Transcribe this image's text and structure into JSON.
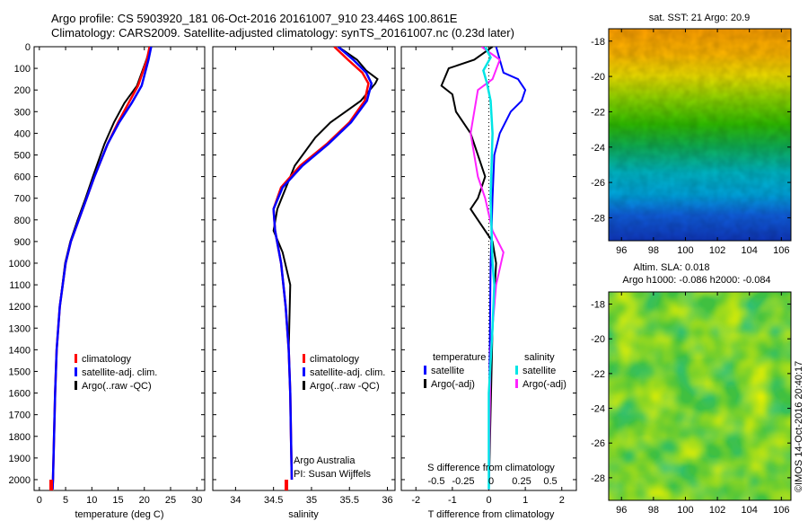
{
  "header": {
    "title_line1": "Argo profile: CS 5903920_181 06-Oct-2016 20161007_910 23.446S 100.861E",
    "title_line2": "Climatology: CARS2009. Satellite-adjusted climatology: synTS_20161007.nc (0.23d later)"
  },
  "colors": {
    "climatology": "#ff0000",
    "satellite": "#0000ff",
    "argo": "#000000",
    "sal_satellite": "#00e5e5",
    "sal_argo": "#ff22ff"
  },
  "panels": {
    "depth_ticks": [
      0,
      100,
      200,
      300,
      400,
      500,
      600,
      700,
      800,
      900,
      1000,
      1100,
      1200,
      1300,
      1400,
      1500,
      1600,
      1700,
      1800,
      1900,
      2000
    ],
    "depth_range": [
      0,
      2050
    ],
    "temperature": {
      "xlabel": "temperature (deg C)",
      "xlim": [
        -1,
        31.5
      ],
      "xticks": [
        "0",
        "5",
        "10",
        "15",
        "20",
        "25",
        "30"
      ],
      "legend": [
        "climatology",
        "satellite-adj. clim.",
        "Argo(..raw -QC)"
      ]
    },
    "salinity": {
      "xlabel": "salinity",
      "xlim": [
        33.7,
        36.1
      ],
      "xticks": [
        "34",
        "34.5",
        "35",
        "35.5",
        "36"
      ],
      "legend": [
        "climatology",
        "satellite-adj. clim.",
        "Argo(..raw -QC)"
      ],
      "note_line1": "Argo Australia",
      "note_line2": "PI: Susan Wijffels"
    },
    "difference": {
      "xlabel": "T difference from climatology",
      "xlim": [
        -2.4,
        2.4
      ],
      "xticks": [
        "-2",
        "-1",
        "0",
        "1",
        "2"
      ],
      "top_axis_label": "S difference from climatology",
      "top_ticks": [
        "-0.5",
        "-0.25",
        "0",
        "0.25",
        "0.5"
      ],
      "legend_temp_title": "temperature",
      "legend_sal_title": "salinity",
      "legend_temp": [
        "satellite",
        "Argo(-adj)"
      ],
      "legend_sal": [
        "satellite",
        "Argo(-adj)"
      ]
    }
  },
  "maps": {
    "sst_title": "sat. SST: 21 Argo: 20.9",
    "sla_title_line1": "Altim. SLA: 0.018",
    "sla_title_line2": "Argo h1000: -0.086 h2000: -0.084",
    "lon_ticks": [
      "96",
      "98",
      "100",
      "102",
      "104",
      "106"
    ],
    "lat_ticks": [
      "-18",
      "-20",
      "-22",
      "-24",
      "-26",
      "-28"
    ],
    "lon_range": [
      95.2,
      106.6
    ],
    "lat_range": [
      -17.3,
      -29.3
    ]
  },
  "footer": {
    "stamp": "©IMOS 14-Oct-2016 20:40:17"
  },
  "chart_data": [
    {
      "type": "line",
      "xlabel": "temperature (deg C)",
      "ylabel": "",
      "xlim": [
        -1,
        31.5
      ],
      "ylim": [
        2050,
        0
      ],
      "series": [
        {
          "name": "climatology",
          "x": [
            21,
            20.5,
            18.8,
            17,
            15,
            13,
            10.5,
            9,
            7.5,
            6,
            5,
            3.9,
            3.3,
            3,
            2.8,
            2.6,
            2.5
          ],
          "y": [
            0,
            60,
            180,
            260,
            350,
            450,
            600,
            700,
            800,
            900,
            1000,
            1200,
            1400,
            1600,
            1800,
            2000,
            2045
          ]
        },
        {
          "name": "satellite-adj. clim.",
          "x": [
            21.3,
            20.8,
            19.5,
            17.6,
            15.2,
            13,
            10.5,
            9,
            7.5,
            6,
            5,
            3.9,
            3.3,
            3,
            2.8,
            2.6,
            2.5
          ],
          "y": [
            0,
            60,
            180,
            260,
            350,
            450,
            600,
            700,
            800,
            900,
            1000,
            1200,
            1400,
            1600,
            1800,
            2000,
            2045
          ]
        },
        {
          "name": "Argo(..raw -QC)",
          "x": [
            21.1,
            20.4,
            18.6,
            16.2,
            14.2,
            12.4,
            10.2,
            8.8,
            7.3,
            5.9,
            4.9,
            3.9,
            3.3,
            3,
            2.8,
            2.6,
            2.5
          ],
          "y": [
            0,
            60,
            180,
            260,
            350,
            450,
            600,
            700,
            800,
            900,
            1000,
            1200,
            1400,
            1600,
            1800,
            2000,
            2045
          ]
        }
      ]
    },
    {
      "type": "line",
      "xlabel": "salinity",
      "ylabel": "",
      "xlim": [
        33.7,
        36.1
      ],
      "ylim": [
        2050,
        0
      ],
      "series": [
        {
          "name": "climatology",
          "x": [
            35.3,
            35.48,
            35.67,
            35.75,
            35.7,
            35.5,
            35.2,
            34.85,
            34.6,
            34.5,
            34.52,
            34.6,
            34.66,
            34.7,
            34.72,
            34.73,
            34.74
          ],
          "y": [
            0,
            60,
            120,
            170,
            250,
            350,
            450,
            550,
            650,
            750,
            850,
            1000,
            1200,
            1400,
            1600,
            1800,
            2000
          ]
        },
        {
          "name": "satellite-adj. clim.",
          "x": [
            35.35,
            35.55,
            35.72,
            35.79,
            35.73,
            35.52,
            35.22,
            34.88,
            34.62,
            34.5,
            34.52,
            34.6,
            34.66,
            34.7,
            34.72,
            34.73,
            34.74
          ],
          "y": [
            0,
            60,
            120,
            170,
            250,
            350,
            450,
            550,
            650,
            750,
            850,
            1000,
            1200,
            1400,
            1600,
            1800,
            2000
          ]
        },
        {
          "name": "Argo(..raw -QC)",
          "x": [
            35.35,
            35.6,
            35.72,
            35.87,
            35.84,
            35.65,
            35.45,
            35.25,
            35.05,
            34.78,
            34.55,
            34.5,
            34.62,
            34.72,
            34.7,
            34.72,
            34.73,
            34.74
          ],
          "y": [
            0,
            60,
            110,
            150,
            170,
            250,
            300,
            350,
            420,
            550,
            750,
            850,
            950,
            1100,
            1400,
            1600,
            1800,
            2000
          ]
        }
      ]
    },
    {
      "type": "line",
      "xlabel": "T difference from climatology",
      "ylabel": "",
      "xlim": [
        -2.4,
        2.4
      ],
      "ylim": [
        2050,
        0
      ],
      "series": [
        {
          "name": "temperature satellite",
          "x": [
            0.2,
            0.3,
            0.4,
            0.8,
            1.0,
            0.9,
            0.6,
            0.3,
            0.15,
            0.1,
            0.05,
            0.02,
            0
          ],
          "y": [
            0,
            60,
            120,
            150,
            200,
            250,
            300,
            400,
            500,
            700,
            1000,
            1500,
            2045
          ]
        },
        {
          "name": "temperature Argo(-adj)",
          "x": [
            0.1,
            -0.4,
            -1.1,
            -1.3,
            -1.0,
            -0.9,
            -0.5,
            -0.3,
            -0.1,
            -0.3,
            -0.5,
            -0.3,
            -0.1,
            0.1,
            0.2,
            0.1,
            0
          ],
          "y": [
            0,
            60,
            100,
            180,
            220,
            300,
            400,
            500,
            600,
            700,
            750,
            800,
            850,
            900,
            1000,
            1300,
            2045
          ]
        },
        {
          "name": "salinity satellite",
          "x": [
            -0.1,
            0.05,
            -0.15,
            -0.05,
            0.05,
            0.1,
            0.05,
            0.1,
            0.15,
            0.1,
            0,
            0
          ],
          "y": [
            0,
            50,
            110,
            170,
            250,
            400,
            700,
            1000,
            1100,
            1300,
            1600,
            2045
          ]
        },
        {
          "name": "salinity Argo(-adj)",
          "x": [
            -0.2,
            0.3,
            0.1,
            -0.3,
            -0.5,
            -0.3,
            -0.1,
            0.1,
            0.4,
            0.2,
            0.05,
            0
          ],
          "y": [
            0,
            60,
            150,
            200,
            400,
            600,
            700,
            850,
            950,
            1100,
            1400,
            2045
          ]
        }
      ]
    },
    {
      "type": "heatmap",
      "title": "sat. SST: 21 Argo: 20.9",
      "x_ticks": [
        "96",
        "98",
        "100",
        "102",
        "104",
        "106"
      ],
      "y_ticks": [
        "-18",
        "-20",
        "-22",
        "-24",
        "-26",
        "-28"
      ]
    },
    {
      "type": "heatmap",
      "title": "Altim. SLA: 0.018",
      "subtitle": "Argo h1000: -0.086 h2000: -0.084",
      "x_ticks": [
        "96",
        "98",
        "100",
        "102",
        "104",
        "106"
      ],
      "y_ticks": [
        "-18",
        "-20",
        "-22",
        "-24",
        "-26",
        "-28"
      ]
    }
  ]
}
